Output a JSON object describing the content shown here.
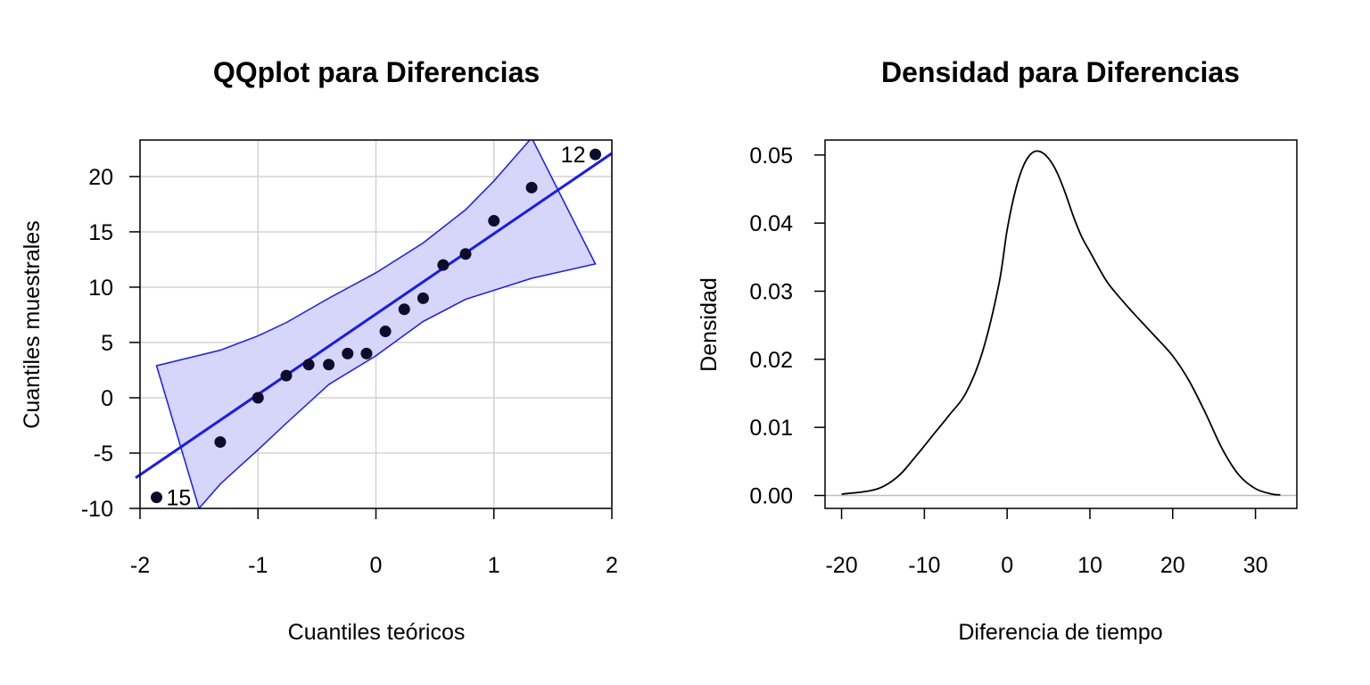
{
  "chart_data": [
    {
      "type": "scatter",
      "title": "QQplot para Diferencias",
      "xlabel": "Cuantiles teóricos",
      "ylabel": "Cuantiles muestrales",
      "xlim": [
        -2,
        2
      ],
      "ylim": [
        -10,
        23.3
      ],
      "xticks": [
        -2,
        -1,
        0,
        1,
        2
      ],
      "yticks": [
        -10,
        -5,
        0,
        5,
        10,
        15,
        20
      ],
      "grid": true,
      "points": [
        {
          "x": -1.86,
          "y": -9,
          "label": "15"
        },
        {
          "x": -1.32,
          "y": -4
        },
        {
          "x": -1.0,
          "y": 0
        },
        {
          "x": -0.76,
          "y": 2
        },
        {
          "x": -0.57,
          "y": 3
        },
        {
          "x": -0.4,
          "y": 3
        },
        {
          "x": -0.24,
          "y": 4
        },
        {
          "x": -0.08,
          "y": 4
        },
        {
          "x": 0.08,
          "y": 6
        },
        {
          "x": 0.24,
          "y": 8
        },
        {
          "x": 0.4,
          "y": 9
        },
        {
          "x": 0.57,
          "y": 12
        },
        {
          "x": 0.76,
          "y": 13
        },
        {
          "x": 1.0,
          "y": 16
        },
        {
          "x": 1.32,
          "y": 19
        },
        {
          "x": 1.86,
          "y": 22,
          "label": "12"
        }
      ],
      "reference_line": {
        "intercept": 7.5,
        "slope": 7.3
      },
      "confidence_band": {
        "upper": [
          [
            -1.86,
            2.9
          ],
          [
            -1.32,
            4.3
          ],
          [
            -1.0,
            5.6
          ],
          [
            -0.76,
            6.8
          ],
          [
            -0.4,
            9.0
          ],
          [
            0.0,
            11.3
          ],
          [
            0.4,
            14.0
          ],
          [
            0.76,
            17.0
          ],
          [
            1.0,
            19.6
          ],
          [
            1.32,
            23.5
          ]
        ],
        "lower": [
          [
            -1.5,
            -10.0
          ],
          [
            -1.32,
            -7.8
          ],
          [
            -1.0,
            -4.7
          ],
          [
            -0.76,
            -2.3
          ],
          [
            -0.4,
            1.2
          ],
          [
            0.0,
            3.8
          ],
          [
            0.4,
            6.9
          ],
          [
            0.76,
            8.9
          ],
          [
            1.32,
            10.8
          ],
          [
            1.86,
            12.1
          ]
        ]
      },
      "colors": {
        "points": "#0d0d2b",
        "line": "#1a1aee",
        "band_fill": "#d6d6fa",
        "band_edge": "#1a1aee",
        "grid": "#d3d3d3"
      }
    },
    {
      "type": "line",
      "title": "Densidad para Diferencias",
      "xlabel": "Diferencia de tiempo",
      "ylabel": "Densidad",
      "xlim": [
        -22,
        35
      ],
      "ylim": [
        -0.0019,
        0.0522
      ],
      "xticks": [
        -20,
        -10,
        0,
        10,
        20,
        30
      ],
      "yticks": [
        0.0,
        0.01,
        0.02,
        0.03,
        0.04,
        0.05
      ],
      "ytick_labels": [
        "0.00",
        "0.01",
        "0.02",
        "0.03",
        "0.04",
        "0.05"
      ],
      "baseline": 0,
      "x": [
        -20,
        -17,
        -15,
        -13,
        -11,
        -9,
        -7,
        -5,
        -3,
        -1,
        0,
        1,
        2,
        3,
        4,
        5,
        6,
        7,
        8,
        9,
        10,
        12,
        14,
        16,
        18,
        20,
        22,
        24,
        26,
        28,
        30,
        32,
        33
      ],
      "y": [
        0.0002,
        0.0006,
        0.0013,
        0.003,
        0.0058,
        0.0088,
        0.0118,
        0.015,
        0.021,
        0.031,
        0.039,
        0.0448,
        0.0485,
        0.0503,
        0.0505,
        0.0495,
        0.0475,
        0.0445,
        0.041,
        0.038,
        0.0358,
        0.0315,
        0.0285,
        0.0258,
        0.0232,
        0.0205,
        0.0168,
        0.012,
        0.0068,
        0.003,
        0.001,
        0.0002,
        0.0001
      ],
      "colors": {
        "line": "#000000",
        "baseline": "#bebebe"
      }
    }
  ]
}
